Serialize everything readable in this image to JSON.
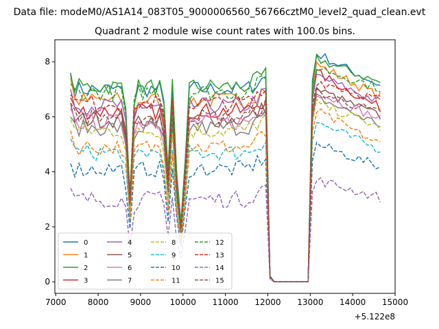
{
  "chart_data": {
    "type": "line",
    "suptitle": "Data file: modeM0/AS1A14_083T05_9000006560_56766cztM0_level2_quad_clean.evt",
    "title": "Quadrant 2 module wise count rates with 100.0s bins.",
    "xlabel": "",
    "ylabel": "",
    "x_offset_label": "+5.122e8",
    "xlim": [
      6980,
      15000
    ],
    "ylim": [
      -0.42,
      8.8
    ],
    "xticks": [
      "7000",
      "8000",
      "9000",
      "10000",
      "11000",
      "12000",
      "13000",
      "14000",
      "15000"
    ],
    "xtick_values": [
      7000,
      8000,
      9000,
      10000,
      11000,
      12000,
      13000,
      14000,
      15000
    ],
    "yticks": [
      "0",
      "2",
      "4",
      "6",
      "8"
    ],
    "ytick_values": [
      0,
      2,
      4,
      6,
      8
    ],
    "legend_position": "lower-left",
    "x_start": 7350,
    "x_step": 100,
    "gap_start": 12050,
    "gap_end": 12950,
    "dips": [
      {
        "x": 8750,
        "depth": 0.45
      },
      {
        "x": 8650,
        "depth": 0.88
      },
      {
        "x": 8850,
        "depth": 0.93
      },
      {
        "x": 9650,
        "depth": 0.55
      },
      {
        "x": 9550,
        "depth": 0.9
      },
      {
        "x": 9950,
        "depth": 0.3
      },
      {
        "x": 9850,
        "depth": 0.55
      },
      {
        "x": 10050,
        "depth": 0.62
      },
      {
        "x": 12050,
        "depth": 0.03
      }
    ],
    "series": [
      {
        "name": "0",
        "color": "#1f77b4",
        "dash": "solid",
        "base": 7.0,
        "start": 7.6,
        "peak": 8.3
      },
      {
        "name": "1",
        "color": "#ff7f0e",
        "dash": "solid",
        "base": 6.6,
        "start": 7.4,
        "peak": 7.9
      },
      {
        "name": "2",
        "color": "#2ca02c",
        "dash": "solid",
        "base": 7.1,
        "start": 7.5,
        "peak": 8.1
      },
      {
        "name": "3",
        "color": "#d62728",
        "dash": "solid",
        "base": 6.2,
        "start": 6.7,
        "peak": 7.6
      },
      {
        "name": "4",
        "color": "#9467bd",
        "dash": "solid",
        "base": 6.4,
        "start": 7.0,
        "peak": 7.5
      },
      {
        "name": "5",
        "color": "#8c564b",
        "dash": "solid",
        "base": 5.9,
        "start": 6.5,
        "peak": 7.0
      },
      {
        "name": "6",
        "color": "#e377c2",
        "dash": "solid",
        "base": 5.8,
        "start": 6.3,
        "peak": 6.9
      },
      {
        "name": "7",
        "color": "#7f7f7f",
        "dash": "solid",
        "base": 5.6,
        "start": 6.0,
        "peak": 6.7
      },
      {
        "name": "8",
        "color": "#bcbd22",
        "dash": "dashed",
        "base": 5.5,
        "start": 5.9,
        "peak": 6.5
      },
      {
        "name": "9",
        "color": "#17becf",
        "dash": "dashed",
        "base": 4.7,
        "start": 5.2,
        "peak": 5.8
      },
      {
        "name": "10",
        "color": "#1f77b4",
        "dash": "dashed",
        "base": 4.1,
        "start": 4.3,
        "peak": 5.0
      },
      {
        "name": "11",
        "color": "#ff7f0e",
        "dash": "dashed",
        "base": 4.9,
        "start": 5.5,
        "peak": 6.2
      },
      {
        "name": "12",
        "color": "#2ca02c",
        "dash": "dashed",
        "base": 6.9,
        "start": 7.2,
        "peak": 7.8
      },
      {
        "name": "13",
        "color": "#d62728",
        "dash": "dashed",
        "base": 6.5,
        "start": 6.8,
        "peak": 7.3
      },
      {
        "name": "14",
        "color": "#9467bd",
        "dash": "dashed",
        "base": 3.0,
        "start": 3.4,
        "peak": 3.7
      },
      {
        "name": "15",
        "color": "#8c564b",
        "dash": "dashed",
        "base": 6.0,
        "start": 6.5,
        "peak": 6.9
      }
    ]
  }
}
